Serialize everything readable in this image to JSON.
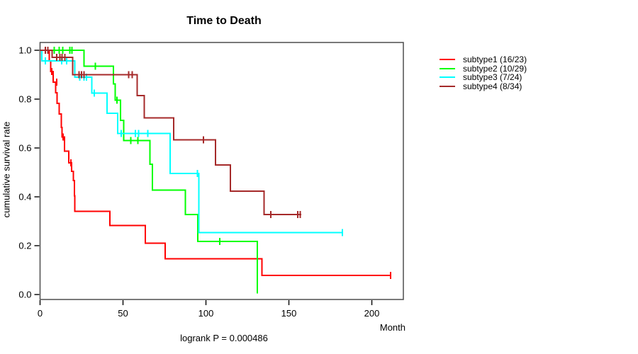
{
  "title": "Time to Death",
  "y_axis_title": "cumulative survival rate",
  "x_axis_title": "Month",
  "annotation": "logrank P = 0.000486",
  "legend": [
    {
      "id": "subtype1",
      "label": "subtype1 (16/23)",
      "color": "#FF0000"
    },
    {
      "id": "subtype2",
      "label": "subtype2 (10/29)",
      "color": "#00FF00"
    },
    {
      "id": "subtype3",
      "label": "subtype3 (7/24)",
      "color": "#00FFFF"
    },
    {
      "id": "subtype4",
      "label": "subtype4 (8/34)",
      "color": "#A52A2A"
    }
  ],
  "chart_data": {
    "type": "line",
    "subtype": "kaplan-meier-step",
    "title": "Time to Death",
    "xlabel": "Month",
    "ylabel": "cumulative survival rate",
    "annotation": "logrank P = 0.000486",
    "x_ticks": [
      0,
      50,
      100,
      150,
      200
    ],
    "y_ticks": [
      0.0,
      0.2,
      0.4,
      0.6,
      0.8,
      1.0
    ],
    "xlim": [
      0,
      219
    ],
    "ylim": [
      -0.0203,
      1.0319
    ],
    "grid": false,
    "legend_position": "right",
    "series": [
      {
        "id": "subtype1",
        "name": "subtype1 (16/23)",
        "events": "16/23",
        "color": "#FF0000",
        "points": [
          [
            0,
            1.0
          ],
          [
            5.5,
            0.957
          ],
          [
            6.5,
            0.913
          ],
          [
            8,
            0.87
          ],
          [
            9.3,
            0.826
          ],
          [
            10.3,
            0.783
          ],
          [
            11.5,
            0.739
          ],
          [
            12.9,
            0.684
          ],
          [
            13.2,
            0.645
          ],
          [
            14.8,
            0.587
          ],
          [
            17.2,
            0.539
          ],
          [
            19,
            0.505
          ],
          [
            20,
            0.467
          ],
          [
            20.7,
            0.404
          ],
          [
            21,
            0.341
          ],
          [
            42,
            0.282
          ],
          [
            63.5,
            0.21
          ],
          [
            75.5,
            0.146
          ],
          [
            133.7,
            0.078
          ]
        ],
        "end": 211.4,
        "censors": [
          [
            7,
            0.913
          ],
          [
            10,
            0.87
          ],
          [
            13.8,
            0.645
          ],
          [
            18.6,
            0.539
          ],
          [
            211.4,
            0.078
          ]
        ]
      },
      {
        "id": "subtype2",
        "name": "subtype2 (10/29)",
        "events": "10/29",
        "color": "#00FF00",
        "points": [
          [
            0,
            1.0
          ],
          [
            26.6,
            0.935
          ],
          [
            44.2,
            0.862
          ],
          [
            45.2,
            0.795
          ],
          [
            48.5,
            0.713
          ],
          [
            50.5,
            0.631
          ],
          [
            66.3,
            0.534
          ],
          [
            67.7,
            0.428
          ],
          [
            87.7,
            0.327
          ],
          [
            95,
            0.218
          ],
          [
            130.9,
            0.005
          ]
        ],
        "end": 130.9,
        "censors": [
          [
            8.5,
            1.0
          ],
          [
            11.5,
            1.0
          ],
          [
            13.6,
            1.0
          ],
          [
            17.9,
            1.0
          ],
          [
            19.3,
            1.0
          ],
          [
            33.3,
            0.935
          ],
          [
            46.4,
            0.795
          ],
          [
            54.6,
            0.631
          ],
          [
            58.9,
            0.631
          ],
          [
            108.3,
            0.218
          ]
        ]
      },
      {
        "id": "subtype3",
        "name": "subtype3 (7/24)",
        "events": "7/24",
        "color": "#00FFFF",
        "points": [
          [
            0,
            1.0
          ],
          [
            1.1,
            0.957
          ],
          [
            21,
            0.89
          ],
          [
            31.1,
            0.824
          ],
          [
            40.3,
            0.742
          ],
          [
            46.7,
            0.66
          ],
          [
            78.4,
            0.496
          ],
          [
            95.8,
            0.254
          ]
        ],
        "end": 182.3,
        "censors": [
          [
            3.3,
            0.957
          ],
          [
            13,
            0.957
          ],
          [
            16,
            0.957
          ],
          [
            24,
            0.89
          ],
          [
            26.4,
            0.89
          ],
          [
            27.9,
            0.89
          ],
          [
            32.6,
            0.824
          ],
          [
            49,
            0.66
          ],
          [
            57.5,
            0.66
          ],
          [
            59.5,
            0.66
          ],
          [
            64.9,
            0.66
          ],
          [
            94.8,
            0.496
          ],
          [
            182.3,
            0.254
          ]
        ]
      },
      {
        "id": "subtype4",
        "name": "subtype4 (8/34)",
        "events": "8/34",
        "color": "#A52A2A",
        "points": [
          [
            0,
            1.0
          ],
          [
            7.2,
            0.971
          ],
          [
            19.7,
            0.9
          ],
          [
            58.5,
            0.814
          ],
          [
            62.8,
            0.723
          ],
          [
            80.6,
            0.634
          ],
          [
            105.8,
            0.53
          ],
          [
            114.7,
            0.423
          ],
          [
            135.1,
            0.327
          ]
        ],
        "end": 157.5,
        "censors": [
          [
            3.3,
            1.0
          ],
          [
            4.7,
            1.0
          ],
          [
            10,
            0.971
          ],
          [
            11.9,
            0.971
          ],
          [
            13.3,
            0.971
          ],
          [
            15,
            0.971
          ],
          [
            23.6,
            0.9
          ],
          [
            25,
            0.9
          ],
          [
            26.4,
            0.9
          ],
          [
            53.5,
            0.9
          ],
          [
            55.6,
            0.9
          ],
          [
            98.4,
            0.634
          ],
          [
            139,
            0.327
          ],
          [
            155.3,
            0.327
          ],
          [
            156.8,
            0.327
          ]
        ]
      }
    ]
  }
}
